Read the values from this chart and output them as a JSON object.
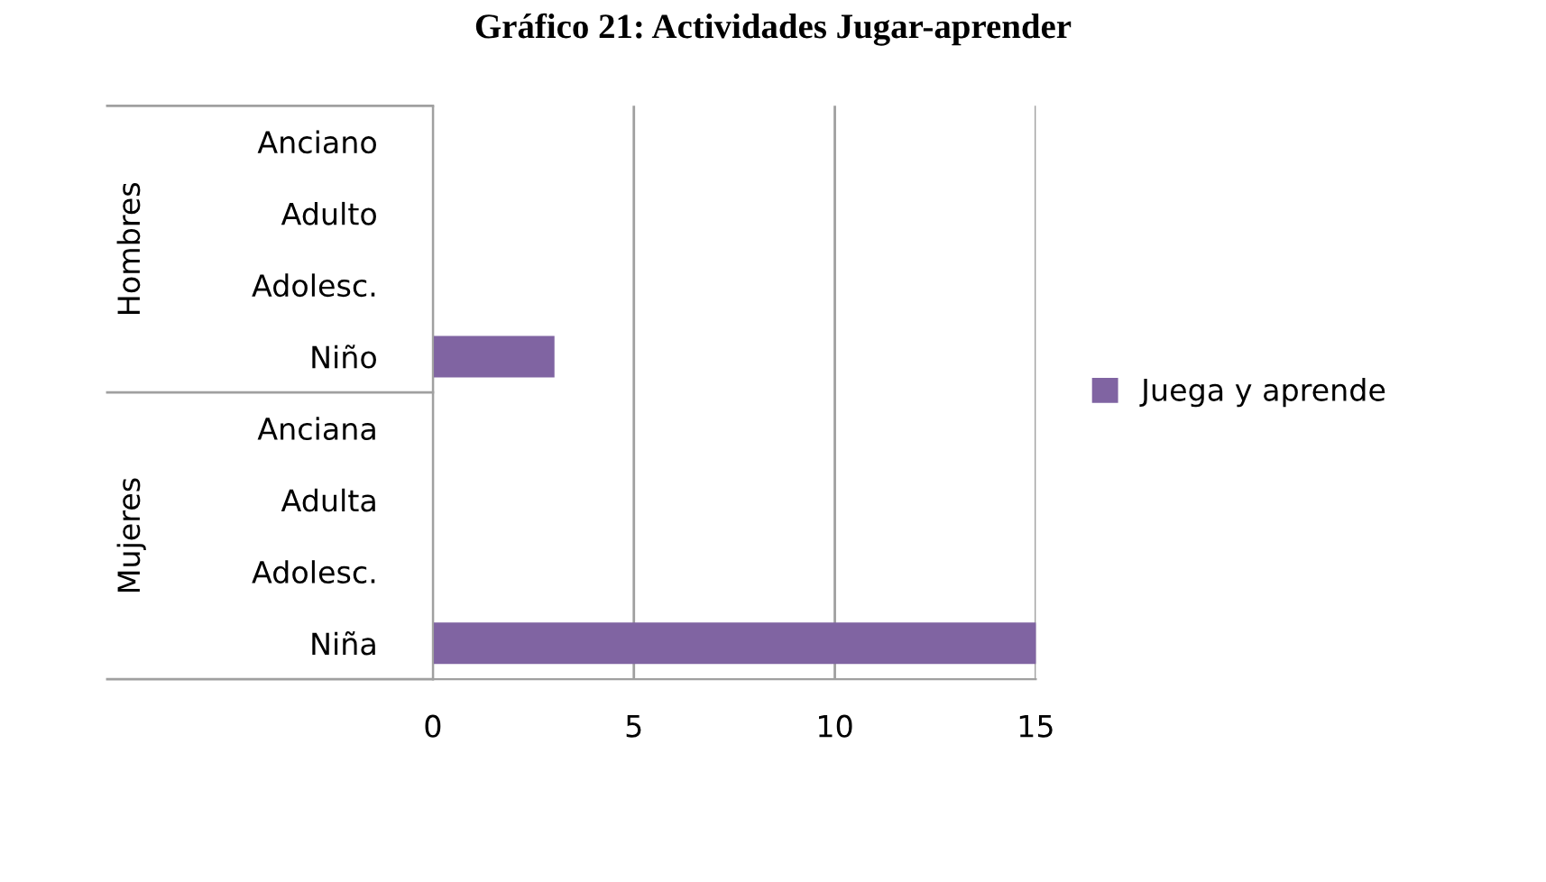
{
  "chart_data": {
    "type": "bar",
    "orientation": "horizontal",
    "title": "Gráfico 21: Actividades Jugar-aprender",
    "categories": [
      "Anciano",
      "Adulto",
      "Adolesc.",
      "Niño",
      "Anciana",
      "Adulta",
      "Adolesc.",
      "Niña"
    ],
    "series": [
      {
        "name": "Juega y aprende",
        "color": "#8064a2",
        "values": [
          0,
          0,
          0,
          3,
          0,
          0,
          0,
          15
        ]
      }
    ],
    "annotations": [
      "Hombres",
      "Mujeres"
    ],
    "xlim": [
      0,
      15
    ],
    "xticks": [
      0,
      5,
      10,
      15
    ],
    "grid": "x",
    "legend": "right"
  }
}
